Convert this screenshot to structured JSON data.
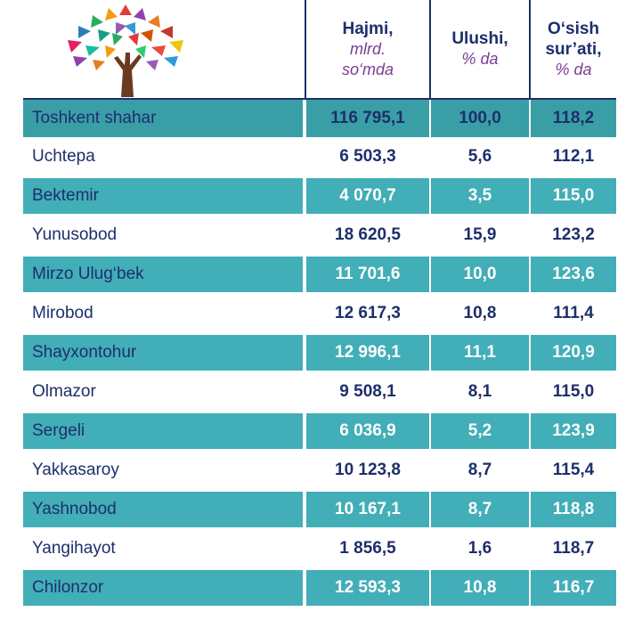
{
  "header": {
    "hajmi_title": "Hajmi,",
    "hajmi_unit1": "mlrd.",
    "hajmi_unit2": "so‘mda",
    "ulushi_title": "Ulushi,",
    "ulushi_unit": "% da",
    "osish_title1": "O‘sish",
    "osish_title2": "sur’ati,",
    "osish_unit": "% da"
  },
  "rows": [
    {
      "name": "Toshkent shahar",
      "hajmi": "116 795,1",
      "ulushi": "100,0",
      "osish": "118,2"
    },
    {
      "name": "Uchtepa",
      "hajmi": "6 503,3",
      "ulushi": "5,6",
      "osish": "112,1"
    },
    {
      "name": "Bektemir",
      "hajmi": "4 070,7",
      "ulushi": "3,5",
      "osish": "115,0"
    },
    {
      "name": "Yunusobod",
      "hajmi": "18 620,5",
      "ulushi": "15,9",
      "osish": "123,2"
    },
    {
      "name": "Mirzo Ulug‘bek",
      "hajmi": "11 701,6",
      "ulushi": "10,0",
      "osish": "123,6"
    },
    {
      "name": "Mirobod",
      "hajmi": "12 617,3",
      "ulushi": "10,8",
      "osish": "111,4"
    },
    {
      "name": "Shayxontohur",
      "hajmi": "12 996,1",
      "ulushi": "11,1",
      "osish": "120,9"
    },
    {
      "name": "Olmazor",
      "hajmi": "9 508,1",
      "ulushi": "8,1",
      "osish": "115,0"
    },
    {
      "name": "Sergeli",
      "hajmi": "6 036,9",
      "ulushi": "5,2",
      "osish": "123,9"
    },
    {
      "name": "Yakkasaroy",
      "hajmi": "10 123,8",
      "ulushi": "8,7",
      "osish": "115,4"
    },
    {
      "name": "Yashnobod",
      "hajmi": "10 167,1",
      "ulushi": "8,7",
      "osish": "118,8"
    },
    {
      "name": "Yangihayot",
      "hajmi": "1 856,5",
      "ulushi": "1,6",
      "osish": "118,7"
    },
    {
      "name": "Chilonzor",
      "hajmi": "12 593,3",
      "ulushi": "10,8",
      "osish": "116,7"
    }
  ],
  "colors": {
    "teal_row": "#42aeb7",
    "header_row": "#3a9ea7",
    "navy_text": "#1d2f6b",
    "unit_purple": "#7a3d93"
  },
  "logo": {
    "icon": "tree-logo-icon"
  }
}
